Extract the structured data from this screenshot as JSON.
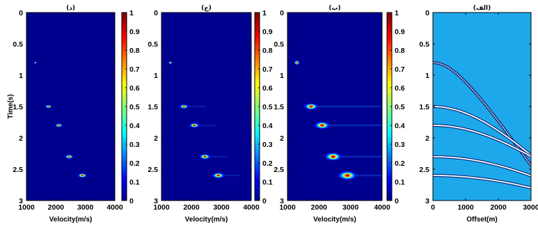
{
  "chart_data": [
    {
      "type": "heatmap",
      "title": "(د)",
      "xlabel": "Velocity(m/s)",
      "ylabel": "Time(s)",
      "xlim": [
        1000,
        4000
      ],
      "ylim": [
        0,
        3
      ],
      "x_ticks": [
        "1000",
        "2000",
        "3000",
        "4000"
      ],
      "y_ticks": [
        "0",
        "0.5",
        "1",
        "1.5",
        "2",
        "2.5",
        "3"
      ],
      "colorbar_ticks": [
        "0",
        "0.1",
        "0.2",
        "0.3",
        "0.4",
        "0.5",
        "0.6",
        "0.7",
        "0.8",
        "0.9",
        "1"
      ],
      "clim": [
        0,
        1
      ],
      "background_color": "#00008f",
      "peaks": [
        {
          "velocity": 1300,
          "time": 0.8
        },
        {
          "velocity": 1750,
          "time": 1.5
        },
        {
          "velocity": 2100,
          "time": 1.8
        },
        {
          "velocity": 2450,
          "time": 2.3
        },
        {
          "velocity": 2900,
          "time": 2.6
        }
      ]
    },
    {
      "type": "heatmap",
      "title": "(ج)",
      "xlabel": "Velocity(m/s)",
      "ylabel": "",
      "xlim": [
        1000,
        4000
      ],
      "ylim": [
        0,
        3
      ],
      "x_ticks": [
        "1000",
        "2000",
        "3000",
        "4000"
      ],
      "y_ticks": [
        "0",
        "0.5",
        "1",
        "1.5",
        "2",
        "2.5",
        "3"
      ],
      "colorbar_ticks": [
        "0",
        "0.1",
        "0.2",
        "0.3",
        "0.4",
        "0.5",
        "0.6",
        "0.7",
        "0.8",
        "0.9",
        "1"
      ],
      "clim": [
        0,
        1
      ],
      "background_color": "#00008f",
      "peaks": [
        {
          "velocity": 1300,
          "time": 0.8
        },
        {
          "velocity": 1750,
          "time": 1.5
        },
        {
          "velocity": 2100,
          "time": 1.8
        },
        {
          "velocity": 2450,
          "time": 2.3
        },
        {
          "velocity": 2900,
          "time": 2.6
        }
      ]
    },
    {
      "type": "heatmap",
      "title": "(ب)",
      "xlabel": "Velocity(m/s)",
      "ylabel": "",
      "xlim": [
        1000,
        4000
      ],
      "ylim": [
        0,
        3
      ],
      "x_ticks": [
        "1000",
        "2000",
        "3000",
        "4000"
      ],
      "y_ticks": [
        "0",
        "0.5",
        "1",
        "1.5",
        "2",
        "2.5",
        "3"
      ],
      "colorbar_ticks": [
        "0",
        "0.1",
        "0.2",
        "0.3",
        "0.4",
        "0.5",
        "0.6",
        "0.7",
        "0.8",
        "0.9",
        "1"
      ],
      "clim": [
        0,
        1
      ],
      "background_color": "#00008f",
      "peaks": [
        {
          "velocity": 1300,
          "time": 0.8
        },
        {
          "velocity": 1750,
          "time": 1.5
        },
        {
          "velocity": 2100,
          "time": 1.8
        },
        {
          "velocity": 2450,
          "time": 2.3
        },
        {
          "velocity": 2900,
          "time": 2.6
        }
      ]
    },
    {
      "type": "heatmap",
      "title": "(الف)",
      "xlabel": "Offset(m)",
      "ylabel": "",
      "xlim": [
        0,
        3000
      ],
      "ylim": [
        0,
        3
      ],
      "x_ticks": [
        "0",
        "1000",
        "2000",
        "3000"
      ],
      "y_ticks": [
        "0",
        "0.5",
        "1",
        "1.5",
        "2",
        "2.5",
        "3"
      ],
      "background_color": "#1ea8ec",
      "events": [
        {
          "t0": 0.8,
          "velocity": 1300
        },
        {
          "t0": 1.5,
          "velocity": 1750
        },
        {
          "t0": 1.8,
          "velocity": 2100
        },
        {
          "t0": 2.3,
          "velocity": 2450
        },
        {
          "t0": 2.6,
          "velocity": 2900
        }
      ]
    }
  ]
}
